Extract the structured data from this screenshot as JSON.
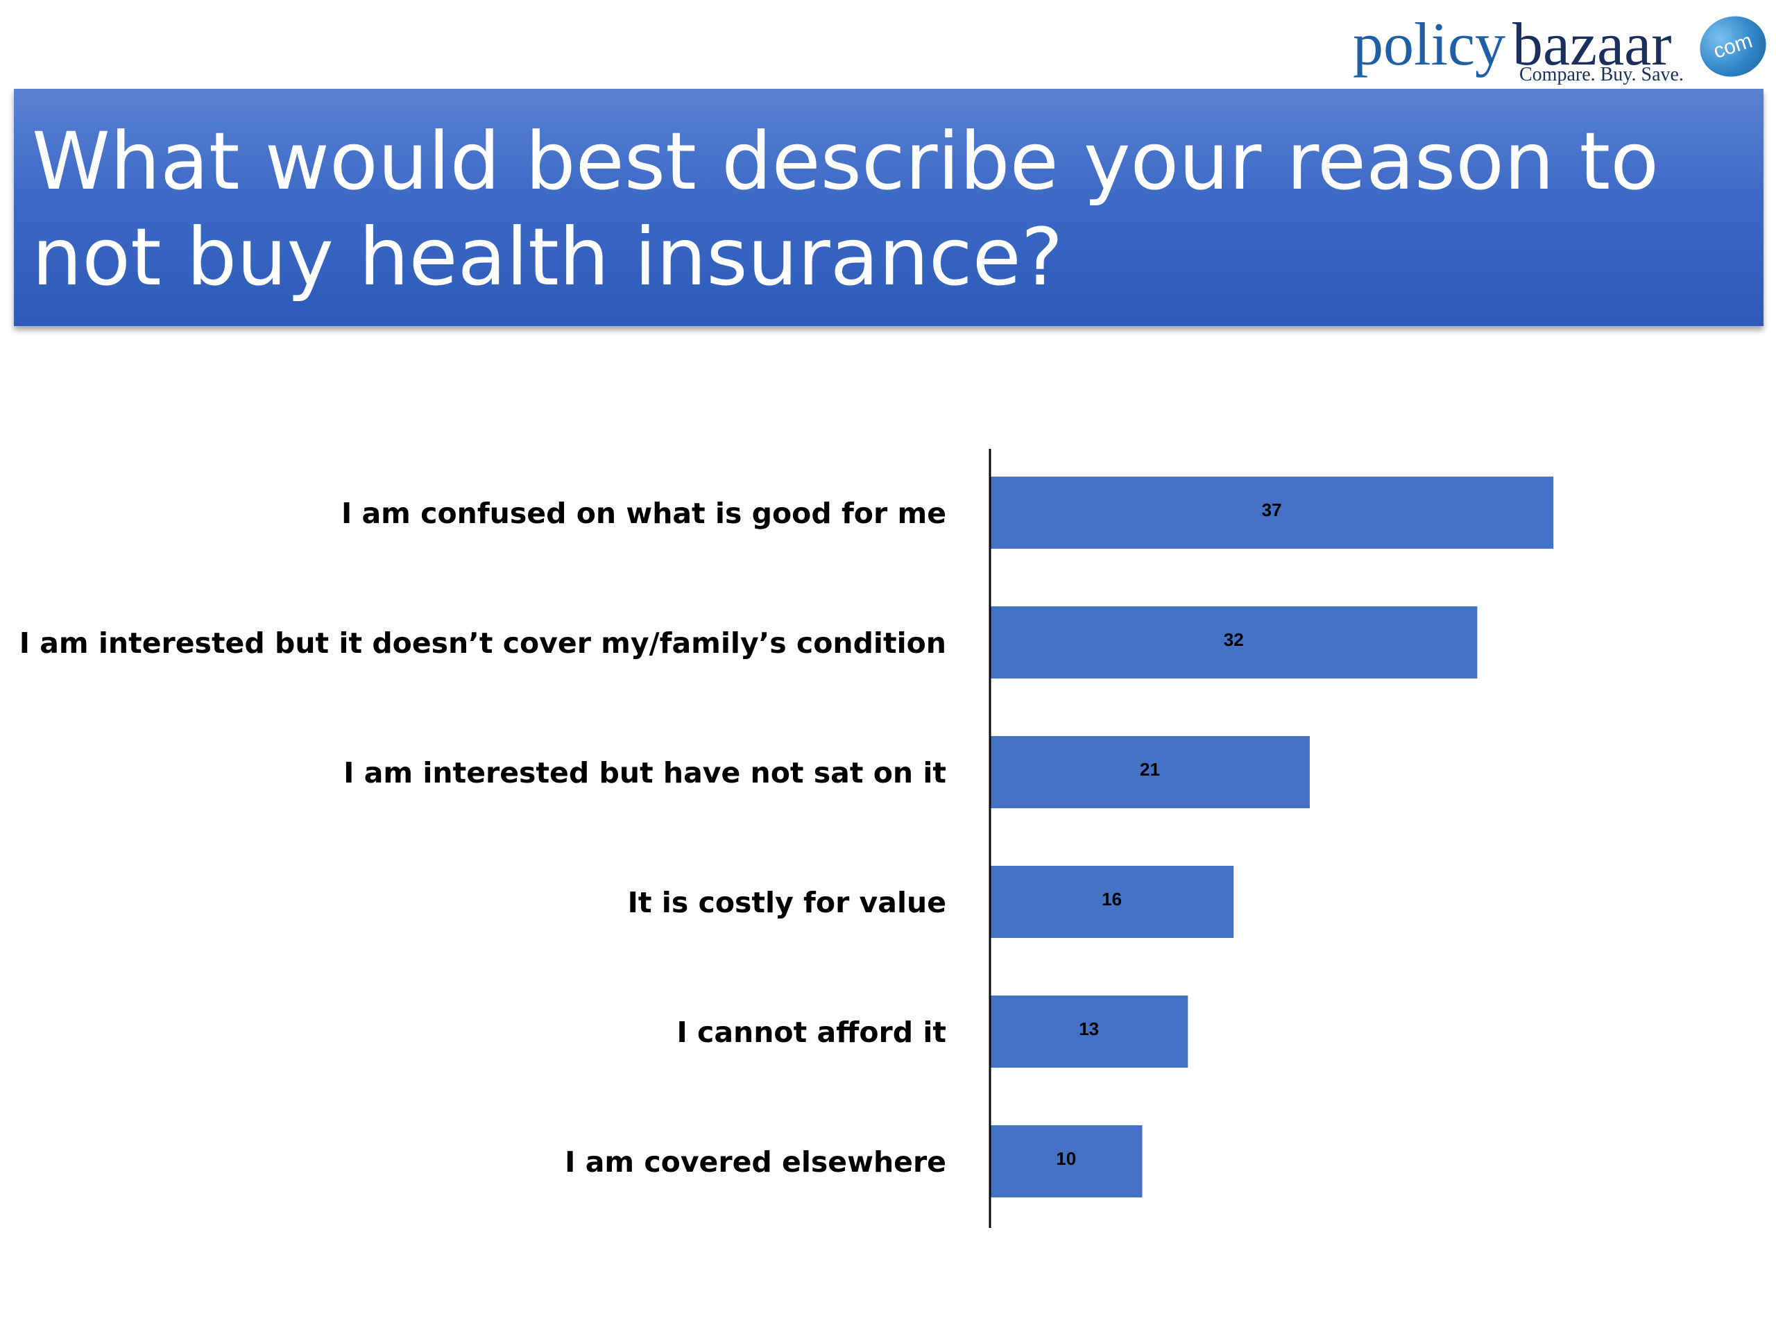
{
  "logo": {
    "word1": "policy",
    "word2": "bazaar",
    "badge": "com",
    "tagline": "Compare. Buy. Save."
  },
  "title": "What would best describe your reason to not buy health insurance?",
  "colors": {
    "banner": "#3d6ac6",
    "bar": "#4472c4",
    "axis": "#000000"
  },
  "chart_data": {
    "type": "bar",
    "orientation": "horizontal",
    "categories": [
      "I am confused on what is good for me",
      "I am interested but it doesn’t cover my/family’s condition",
      "I am interested but have not sat on it",
      "It is costly for value",
      "I cannot afford it",
      "I am covered elsewhere"
    ],
    "values": [
      37,
      32,
      21,
      16,
      13,
      10
    ],
    "data_labels": true,
    "xlim": [
      0,
      40
    ],
    "grid": false,
    "legend": "none"
  }
}
